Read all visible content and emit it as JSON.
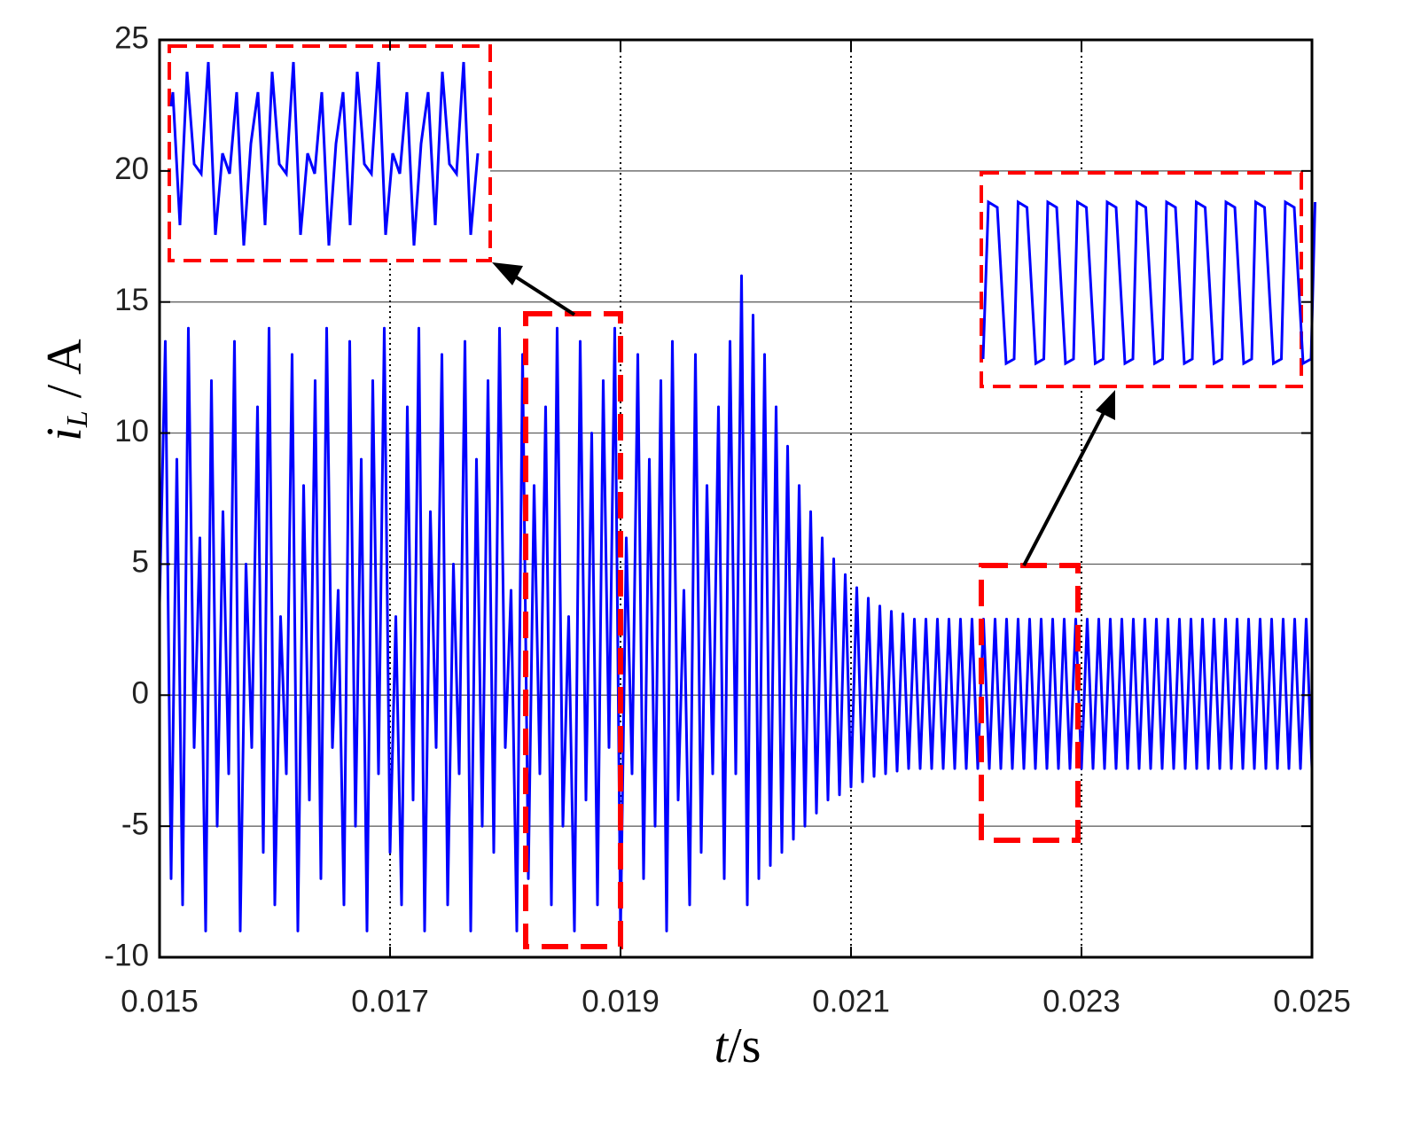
{
  "chart_data": {
    "type": "line",
    "xlabel": {
      "var": "t",
      "unit": "/s"
    },
    "ylabel": {
      "var": "i",
      "sub": "L",
      "unit": " / A"
    },
    "xlim": [
      0.015,
      0.025
    ],
    "xticks": [
      0.015,
      0.017,
      0.019,
      0.021,
      0.023,
      0.025
    ],
    "ylim": [
      -10,
      25
    ],
    "yticks": [
      -10,
      -5,
      0,
      5,
      10,
      15,
      20,
      25
    ],
    "grid": true,
    "series": [
      {
        "color": "#0000ff",
        "x": [
          0.015,
          0.01505,
          0.0151,
          0.01515,
          0.0152,
          0.01525,
          0.0153,
          0.01535,
          0.0154,
          0.01545,
          0.0155,
          0.01555,
          0.0156,
          0.01565,
          0.0157,
          0.01575,
          0.0158,
          0.01585,
          0.0159,
          0.01595,
          0.016,
          0.01605,
          0.0161,
          0.01615,
          0.0162,
          0.01625,
          0.0163,
          0.01635,
          0.0164,
          0.01645,
          0.0165,
          0.01655,
          0.0166,
          0.01665,
          0.0167,
          0.01675,
          0.0168,
          0.01685,
          0.0169,
          0.01695,
          0.017,
          0.01705,
          0.0171,
          0.01715,
          0.0172,
          0.01725,
          0.0173,
          0.01735,
          0.0174,
          0.01745,
          0.0175,
          0.01755,
          0.0176,
          0.01765,
          0.0177,
          0.01775,
          0.0178,
          0.01785,
          0.0179,
          0.01795,
          0.018,
          0.01805,
          0.0181,
          0.01815,
          0.0182,
          0.01825,
          0.0183,
          0.01835,
          0.0184,
          0.01845,
          0.0185,
          0.01855,
          0.0186,
          0.01865,
          0.0187,
          0.01875,
          0.0188,
          0.01885,
          0.0189,
          0.01895,
          0.019,
          0.01905,
          0.0191,
          0.01915,
          0.0192,
          0.01925,
          0.0193,
          0.01935,
          0.0194,
          0.01945,
          0.0195,
          0.01955,
          0.0196,
          0.01965,
          0.0197,
          0.01975,
          0.0198,
          0.01985,
          0.0199,
          0.01995,
          0.02,
          0.02005,
          0.0201,
          0.02015,
          0.0202,
          0.02025,
          0.0203,
          0.02035,
          0.0204,
          0.02045,
          0.0205,
          0.02055,
          0.0206,
          0.02065,
          0.0207,
          0.02075,
          0.0208,
          0.02085,
          0.0209,
          0.02095,
          0.021,
          0.02105,
          0.0211,
          0.02115,
          0.0212,
          0.02125,
          0.0213,
          0.02135,
          0.0214,
          0.02145,
          0.0215,
          0.02155,
          0.0216,
          0.02165,
          0.0217,
          0.02175,
          0.0218,
          0.02185,
          0.0219,
          0.02195,
          0.022,
          0.02205,
          0.0221,
          0.02215,
          0.0222,
          0.02225,
          0.0223,
          0.02235,
          0.0224,
          0.02245,
          0.0225,
          0.02255,
          0.0226,
          0.02265,
          0.0227,
          0.02275,
          0.0228,
          0.02285,
          0.0229,
          0.02295,
          0.023,
          0.02305,
          0.0231,
          0.02315,
          0.0232,
          0.02325,
          0.0233,
          0.02335,
          0.0234,
          0.02345,
          0.0235,
          0.02355,
          0.0236,
          0.02365,
          0.0237,
          0.02375,
          0.0238,
          0.02385,
          0.0239,
          0.02395,
          0.024,
          0.02405,
          0.0241,
          0.02415,
          0.0242,
          0.02425,
          0.0243,
          0.02435,
          0.0244,
          0.02445,
          0.0245,
          0.02455,
          0.0246,
          0.02465,
          0.0247,
          0.02475,
          0.0248,
          0.02485,
          0.0249,
          0.02495,
          0.025
        ],
        "values": [
          3.5,
          13.5,
          -7,
          9,
          -8,
          14,
          -2,
          6,
          -9,
          12,
          -5,
          7,
          -3,
          13.5,
          -9,
          5,
          -2,
          11,
          -6,
          14,
          -8,
          3,
          -3,
          13,
          -9,
          8,
          -4,
          12,
          -7,
          14,
          -2,
          4,
          -8,
          13.5,
          -5,
          9,
          -9,
          12,
          -3,
          14,
          -6,
          3,
          -8,
          11,
          -4,
          14,
          -9,
          7,
          -2,
          13,
          -8,
          5,
          -3,
          13.5,
          -9,
          9,
          -5,
          12,
          -6,
          14,
          -2,
          4,
          -9,
          13,
          -7,
          8,
          -3,
          11,
          -8,
          14,
          -5,
          3,
          -9,
          13.5,
          -4,
          10,
          -8,
          12,
          -2,
          14,
          -9,
          6,
          -3,
          13,
          -7,
          9,
          -5,
          12,
          -9,
          13.5,
          -4,
          4,
          -8,
          13,
          -6,
          8,
          -3,
          11,
          -7,
          13.5,
          -3,
          16,
          -8,
          14.5,
          -7,
          13,
          -6.5,
          11,
          -6,
          9.5,
          -5.5,
          8,
          -5,
          7,
          -4.5,
          6,
          -4,
          5.2,
          -3.8,
          4.6,
          -3.5,
          4.1,
          -3.3,
          3.7,
          -3.1,
          3.4,
          -3,
          3.2,
          -2.9,
          3.1,
          -2.8,
          2.9,
          -2.8,
          2.9,
          -2.8,
          2.9,
          -2.8,
          2.9,
          -2.8,
          2.9,
          -2.8,
          2.9,
          -2.8,
          2.9,
          -2.8,
          2.9,
          -2.8,
          2.9,
          -2.8,
          2.9,
          -2.8,
          2.9,
          -2.8,
          2.9,
          -2.8,
          2.9,
          -2.8,
          2.9,
          -2.8,
          2.9,
          -2.8,
          2.9,
          -2.8,
          2.9,
          -2.8,
          2.9,
          -2.8,
          2.9,
          -2.8,
          2.9,
          -2.8,
          2.9,
          -2.8,
          2.9,
          -2.8,
          2.9,
          -2.8,
          2.9,
          -2.8,
          2.9,
          -2.8,
          2.9,
          -2.8,
          2.9,
          -2.8,
          2.9,
          -2.8,
          2.9,
          -2.8,
          2.9,
          -2.8,
          2.9,
          -2.8,
          2.9,
          -2.8,
          2.9,
          -2.8,
          2.9,
          -2.8,
          2.9,
          -2.8
        ]
      }
    ]
  }
}
